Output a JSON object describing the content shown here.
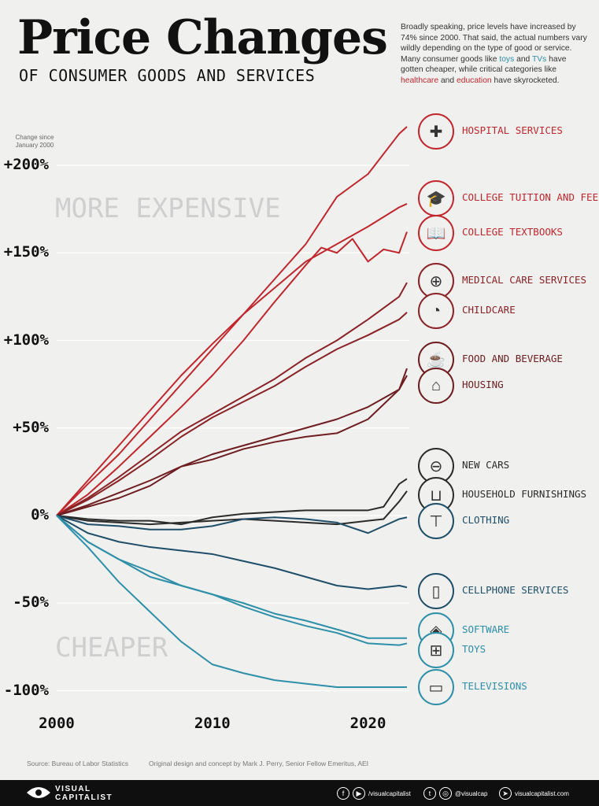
{
  "header": {
    "title": "Price Changes",
    "subtitle": "OF CONSUMER GOODS AND SERVICES",
    "intro_part1": "Broadly speaking, price levels have increased by 74% since 2000. That said, the actual numbers vary wildly depending on the type of good or service. Many consumer goods like ",
    "intro_toys": "toys",
    "intro_and": " and ",
    "intro_tvs": "TVs",
    "intro_part2": " have gotten cheaper, while critical categories like ",
    "intro_healthcare": "healthcare",
    "intro_and2": " and ",
    "intro_education": "education",
    "intro_part3": " have skyrocketed."
  },
  "zones": {
    "expensive": "MORE EXPENSIVE",
    "cheaper": "CHEAPER"
  },
  "footer": {
    "source": "Source: Bureau of Labor Statistics",
    "credit": "Original design and concept by Mark J. Perry, Senior Fellow Emeritus, AEI",
    "brand_line1": "VISUAL",
    "brand_line2": "CAPITALIST",
    "handle1": "/visualcapitalist",
    "handle2": "@visualcap",
    "website": "visualcapitalist.com"
  },
  "colors": {
    "background": "#f0f0ef",
    "red": "#c0272d",
    "darkred": "#7a1f22",
    "dark": "#2b2b2b",
    "navy": "#1f4e68",
    "teal": "#2e8fa8"
  },
  "chart_data": {
    "type": "line",
    "ytitle": "Change since January 2000",
    "ylim": [
      -100,
      225
    ],
    "xlim": [
      2000,
      2023
    ],
    "yticks": [
      200,
      150,
      100,
      50,
      0,
      -50,
      -100
    ],
    "ytick_labels": [
      "+200%",
      "+150%",
      "+100%",
      "+50%",
      "0%",
      "-50%",
      "-100%"
    ],
    "xticks": [
      2000,
      2010,
      2020
    ],
    "xtick_labels": [
      "2000",
      "2010",
      "2020"
    ],
    "grid": true,
    "series": [
      {
        "name": "HOSPITAL SERVICES",
        "color": "#c0272d",
        "icon": "hospital-icon",
        "x": [
          2000,
          2002,
          2004,
          2006,
          2008,
          2010,
          2012,
          2014,
          2016,
          2018,
          2020,
          2022,
          2022.5
        ],
        "y": [
          0,
          18,
          35,
          55,
          75,
          95,
          115,
          135,
          155,
          182,
          195,
          218,
          222
        ]
      },
      {
        "name": "COLLEGE TUITION AND FEES",
        "color": "#c0272d",
        "icon": "graduation-cap-icon",
        "x": [
          2000,
          2002,
          2004,
          2006,
          2008,
          2010,
          2012,
          2014,
          2016,
          2018,
          2020,
          2022,
          2022.5
        ],
        "y": [
          0,
          20,
          40,
          60,
          80,
          98,
          115,
          130,
          145,
          155,
          165,
          176,
          178
        ]
      },
      {
        "name": "COLLEGE TEXTBOOKS",
        "color": "#c0272d",
        "icon": "book-icon",
        "x": [
          2000,
          2002,
          2004,
          2006,
          2008,
          2010,
          2012,
          2014,
          2016,
          2017,
          2018,
          2019,
          2020,
          2021,
          2022,
          2022.5
        ],
        "y": [
          0,
          12,
          28,
          45,
          62,
          80,
          100,
          122,
          143,
          153,
          150,
          158,
          145,
          152,
          150,
          162
        ]
      },
      {
        "name": "MEDICAL CARE SERVICES",
        "color": "#8a2226",
        "icon": "medical-kit-icon",
        "x": [
          2000,
          2002,
          2004,
          2006,
          2008,
          2010,
          2012,
          2014,
          2016,
          2018,
          2020,
          2022,
          2022.5
        ],
        "y": [
          0,
          10,
          22,
          35,
          48,
          58,
          68,
          78,
          90,
          100,
          112,
          125,
          133
        ]
      },
      {
        "name": "CHILDCARE",
        "color": "#8a2226",
        "icon": "stroller-icon",
        "x": [
          2000,
          2002,
          2004,
          2006,
          2008,
          2010,
          2012,
          2014,
          2016,
          2018,
          2020,
          2022,
          2022.5
        ],
        "y": [
          0,
          9,
          20,
          32,
          45,
          56,
          65,
          74,
          85,
          95,
          103,
          112,
          116
        ]
      },
      {
        "name": "FOOD AND BEVERAGE",
        "color": "#6e1d20",
        "icon": "food-icon",
        "x": [
          2000,
          2002,
          2004,
          2006,
          2008,
          2010,
          2012,
          2014,
          2016,
          2018,
          2020,
          2022,
          2022.5
        ],
        "y": [
          0,
          5,
          10,
          17,
          28,
          32,
          38,
          42,
          45,
          47,
          55,
          72,
          84
        ]
      },
      {
        "name": "HOUSING",
        "color": "#6e1d20",
        "icon": "house-icon",
        "x": [
          2000,
          2002,
          2004,
          2006,
          2008,
          2010,
          2012,
          2014,
          2016,
          2018,
          2020,
          2022,
          2022.5
        ],
        "y": [
          0,
          6,
          13,
          20,
          28,
          35,
          40,
          45,
          50,
          55,
          62,
          72,
          80
        ]
      },
      {
        "name": "NEW CARS",
        "color": "#2b2b2b",
        "icon": "car-icon",
        "x": [
          2000,
          2002,
          2004,
          2006,
          2008,
          2010,
          2012,
          2014,
          2016,
          2018,
          2020,
          2021,
          2022,
          2022.5
        ],
        "y": [
          0,
          -2,
          -3,
          -3,
          -5,
          -1,
          1,
          2,
          3,
          3,
          3,
          5,
          18,
          21
        ]
      },
      {
        "name": "HOUSEHOLD FURNISHINGS",
        "color": "#2b2b2b",
        "icon": "sofa-icon",
        "x": [
          2000,
          2002,
          2004,
          2006,
          2008,
          2010,
          2012,
          2014,
          2016,
          2018,
          2020,
          2021,
          2022,
          2022.5
        ],
        "y": [
          0,
          -3,
          -4,
          -5,
          -4,
          -3,
          -2,
          -3,
          -4,
          -5,
          -3,
          -2,
          8,
          14
        ]
      },
      {
        "name": "CLOTHING",
        "color": "#1f4e68",
        "icon": "shirt-icon",
        "x": [
          2000,
          2002,
          2004,
          2006,
          2008,
          2010,
          2012,
          2014,
          2016,
          2018,
          2020,
          2021,
          2022,
          2022.5
        ],
        "y": [
          0,
          -5,
          -6,
          -8,
          -8,
          -6,
          -2,
          -1,
          -2,
          -4,
          -10,
          -6,
          -2,
          -1
        ]
      },
      {
        "name": "CELLPHONE SERVICES",
        "color": "#1f4e68",
        "icon": "phone-icon",
        "x": [
          2000,
          2002,
          2004,
          2006,
          2008,
          2010,
          2012,
          2014,
          2016,
          2018,
          2020,
          2022,
          2022.5
        ],
        "y": [
          0,
          -10,
          -15,
          -18,
          -20,
          -22,
          -26,
          -30,
          -35,
          -40,
          -42,
          -40,
          -41
        ]
      },
      {
        "name": "SOFTWARE",
        "color": "#2e8fa8",
        "icon": "software-box-icon",
        "x": [
          2000,
          2002,
          2004,
          2006,
          2008,
          2010,
          2012,
          2014,
          2016,
          2018,
          2020,
          2022,
          2022.5
        ],
        "y": [
          0,
          -15,
          -25,
          -35,
          -40,
          -45,
          -50,
          -56,
          -60,
          -65,
          -70,
          -70,
          -70
        ]
      },
      {
        "name": "TOYS",
        "color": "#2e8fa8",
        "icon": "toy-robot-icon",
        "x": [
          2000,
          2002,
          2004,
          2006,
          2008,
          2010,
          2012,
          2014,
          2016,
          2018,
          2020,
          2022,
          2022.5
        ],
        "y": [
          0,
          -15,
          -25,
          -32,
          -40,
          -45,
          -52,
          -58,
          -63,
          -67,
          -73,
          -74,
          -73
        ]
      },
      {
        "name": "TELEVISIONS",
        "color": "#2e8fa8",
        "icon": "tv-icon",
        "x": [
          2000,
          2002,
          2004,
          2006,
          2008,
          2010,
          2012,
          2014,
          2016,
          2018,
          2020,
          2022,
          2022.5
        ],
        "y": [
          0,
          -18,
          -38,
          -55,
          -72,
          -85,
          -90,
          -94,
          -96,
          -98,
          -98,
          -98,
          -98
        ]
      }
    ]
  }
}
